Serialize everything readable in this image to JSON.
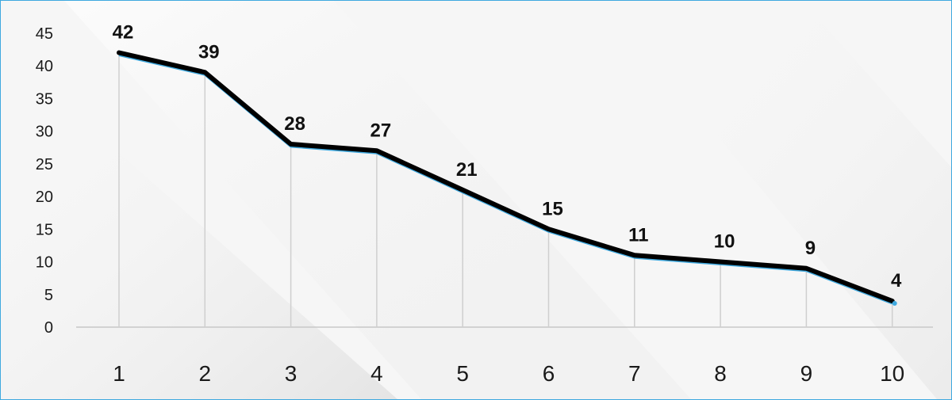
{
  "chart_data": {
    "type": "line",
    "title": "",
    "xlabel": "",
    "ylabel": "",
    "categories": [
      "1",
      "2",
      "3",
      "4",
      "5",
      "6",
      "7",
      "8",
      "9",
      "10"
    ],
    "values": [
      42,
      39,
      28,
      27,
      21,
      15,
      11,
      10,
      9,
      4
    ],
    "y_ticks": [
      "0",
      "5",
      "10",
      "15",
      "20",
      "25",
      "30",
      "35",
      "40",
      "45"
    ],
    "ylim": [
      0,
      45
    ],
    "grid": false,
    "drop_lines": true,
    "legend": "none",
    "colors": {
      "line": "#000000",
      "line_highlight": "#3fa9df",
      "drop_line": "#cfcfcf",
      "axis": "#c8c8c8",
      "border": "#3fa9df",
      "background": "#f6f6f6"
    }
  }
}
